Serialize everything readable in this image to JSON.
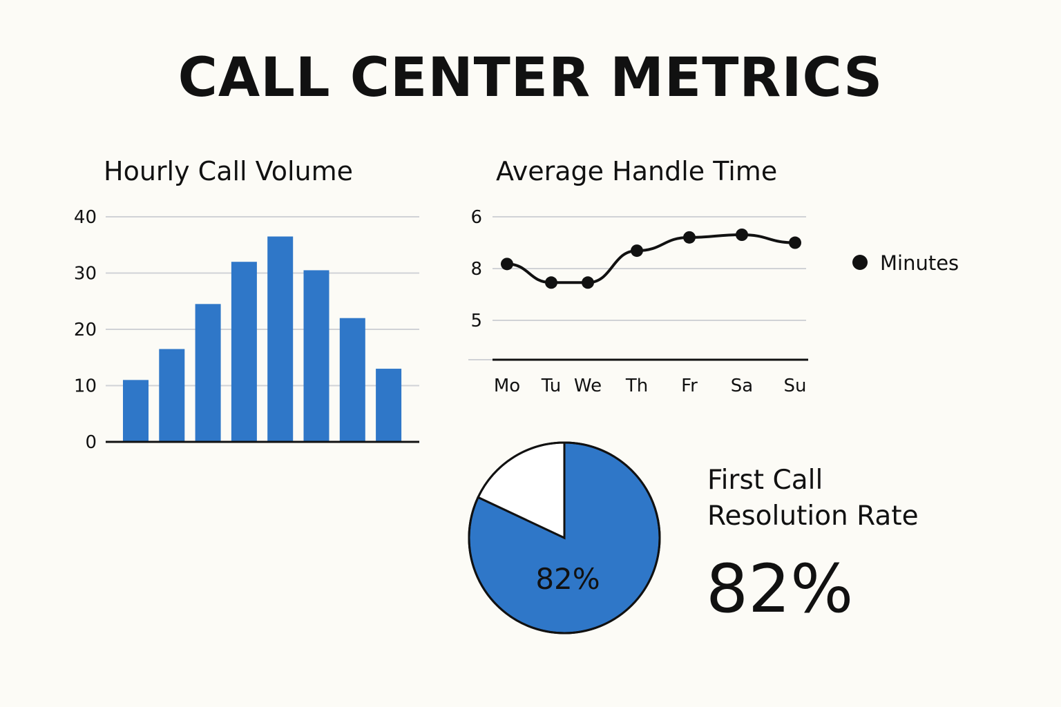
{
  "title": "CALL CENTER METRICS",
  "colors": {
    "bar": "#2f77c8",
    "line": "#111111",
    "grid": "#d0d2d6",
    "background": "#fcfbf6"
  },
  "chart_data": [
    {
      "type": "bar",
      "title": "Hourly Call Volume",
      "categories": [
        "",
        "",
        "",
        "",
        "",
        "",
        "",
        ""
      ],
      "values": [
        11,
        16.5,
        24.5,
        32,
        36.5,
        30.5,
        22,
        13
      ],
      "ylim": [
        0,
        40
      ],
      "yticks": [
        "0",
        "10",
        "20",
        "30",
        "40"
      ],
      "grid": true
    },
    {
      "type": "line",
      "title": "Average Handle Time",
      "categories": [
        "Mo",
        "Tu",
        "We",
        "Th",
        "Fr",
        "Sa",
        "Su"
      ],
      "ytick_labels_top_to_bottom": [
        "6",
        "8",
        "5"
      ],
      "series": [
        {
          "name": "Minutes",
          "values": [
            7.1,
            7.8,
            7.8,
            6.6,
            6.1,
            6.0,
            6.3
          ]
        }
      ],
      "legend": "right",
      "grid": true
    },
    {
      "type": "pie",
      "title": "First Call Resolution Rate",
      "slices": [
        {
          "label": "82%",
          "value": 82
        },
        {
          "label": "",
          "value": 18
        }
      ]
    }
  ],
  "kpi": {
    "label_line1": "First Call",
    "label_line2": "Resolution Rate",
    "value": "82%"
  }
}
